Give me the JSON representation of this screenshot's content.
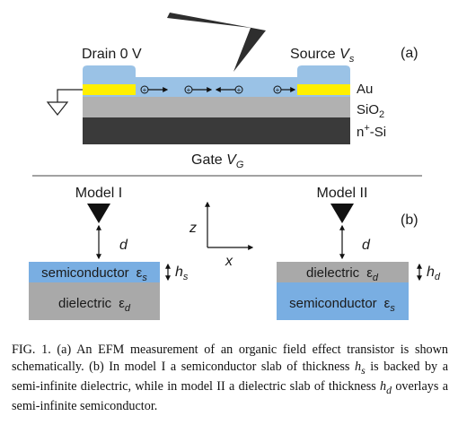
{
  "panel_a": {
    "label": "(a)",
    "drain_label": "Drain 0 V",
    "source_label": "Source ",
    "source_var": "V",
    "source_sub": "s",
    "gate_label": "Gate ",
    "gate_var": "V",
    "gate_sub": "G",
    "layer_au": "Au",
    "layer_sio2_base": "SiO",
    "layer_sio2_sub": "2",
    "layer_si_base": "n",
    "layer_si_sup": "+",
    "layer_si_rest": "-Si",
    "charge_symbol": "+",
    "colors": {
      "semiconductor": "#9ac2e6",
      "gold": "#fff000",
      "oxide": "#b1b1b1",
      "silicon": "#3a3a3a"
    }
  },
  "panel_b": {
    "label": "(b)",
    "axis_z": "z",
    "axis_x": "x",
    "model1": {
      "title": "Model I",
      "d_label": "d",
      "top_layer": "semiconductor",
      "top_eps_sub": "s",
      "bottom_layer": "dielectric",
      "bottom_eps_sub": "d",
      "h_var": "h",
      "h_sub": "s"
    },
    "model2": {
      "title": "Model II",
      "d_label": "d",
      "top_layer": "dielectric",
      "top_eps_sub": "d",
      "bottom_layer": "semiconductor",
      "bottom_eps_sub": "s",
      "h_var": "h",
      "h_sub": "d"
    },
    "eps_symbol": "ε",
    "colors": {
      "semiconductor": "#79aee2",
      "dielectric": "#a9a9a9"
    }
  },
  "caption": {
    "p1": "FIG. 1. (a) An EFM measurement of an organic field effect transistor is shown schematically. (b) In model I a semiconductor slab of thickness ",
    "hs_var": "h",
    "hs_sub": "s",
    "p2": " is backed by a semi-infinite dielectric, while in model II a dielectric slab of thickness ",
    "hd_var": "h",
    "hd_sub": "d",
    "p3": " overlays a semi-infinite semiconductor."
  }
}
